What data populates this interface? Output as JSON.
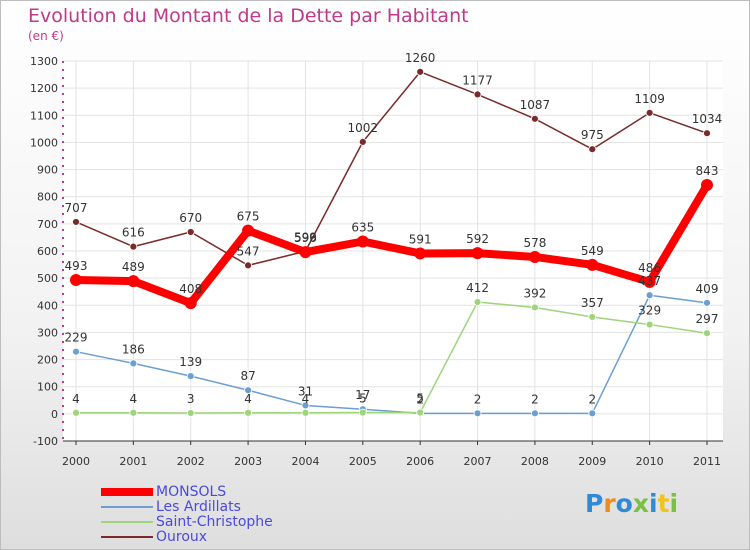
{
  "chart_title": "Evolution du Montant de la Dette par Habitant",
  "unit_label": "(en €)",
  "brand": {
    "text": "Proxiti",
    "colors": [
      "#2e8bd8",
      "#f08a1c",
      "#2e8bd8",
      "#7ac143",
      "#2e8bd8",
      "#f0c419",
      "#7ac143"
    ]
  },
  "chart_data": {
    "type": "line",
    "title": "Evolution du Montant de la Dette par Habitant",
    "ylabel": "(en €)",
    "xlabel": "",
    "x": [
      "2000",
      "2001",
      "2002",
      "2003",
      "2004",
      "2005",
      "2006",
      "2007",
      "2008",
      "2009",
      "2010",
      "2011"
    ],
    "ylim": [
      -100,
      1300
    ],
    "yticks": [
      -100,
      0,
      100,
      200,
      300,
      400,
      500,
      600,
      700,
      800,
      900,
      1000,
      1100,
      1200,
      1300
    ],
    "grid": true,
    "legend_position": "bottom-left",
    "series": [
      {
        "name": "MONSOLS",
        "color": "#ff0000",
        "values": [
          493,
          489,
          408,
          675,
          596,
          635,
          591,
          592,
          578,
          549,
          486,
          843
        ],
        "labels": [
          "493",
          "489",
          "408",
          "675",
          "596",
          "635",
          "591",
          "592",
          "578",
          "549",
          "486",
          "843"
        ]
      },
      {
        "name": "Les Ardillats",
        "color": "#6a9fd0",
        "values": [
          229,
          186,
          139,
          87,
          31,
          17,
          2,
          2,
          2,
          2,
          437,
          409
        ],
        "labels": [
          "229",
          "186",
          "139",
          "87",
          "31",
          "17",
          "2",
          "2",
          "2",
          "2",
          "437",
          "409"
        ]
      },
      {
        "name": "Saint-Christophe",
        "color": "#9ed47a",
        "values": [
          4,
          4,
          3,
          4,
          4,
          5,
          5,
          412,
          392,
          357,
          329,
          297
        ],
        "labels": [
          "4",
          "4",
          "3",
          "4",
          "4",
          "5",
          "5",
          "412",
          "392",
          "357",
          "329",
          "297"
        ]
      },
      {
        "name": "Ouroux",
        "color": "#7a2a2a",
        "values": [
          707,
          616,
          670,
          547,
          599,
          1002,
          1260,
          1177,
          1087,
          975,
          1109,
          1034
        ],
        "labels": [
          "707",
          "616",
          "670",
          "547",
          "599",
          "1002",
          "1260",
          "1177",
          "1087",
          "975",
          "1109",
          "1034"
        ]
      }
    ]
  }
}
